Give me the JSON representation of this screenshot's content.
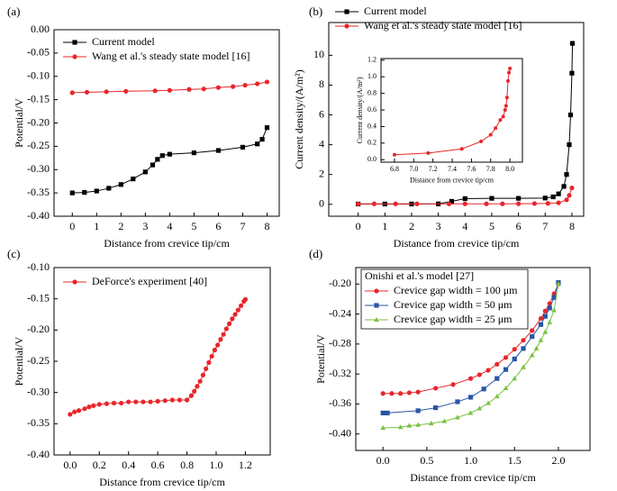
{
  "chart_data": [
    {
      "type": "line",
      "label": "(a)",
      "xlabel": "Distance from crevice tip/cm",
      "ylabel": "Potential/V",
      "xlim": [
        -0.75,
        8.5
      ],
      "xticks": [
        0,
        1,
        2,
        3,
        4,
        5,
        6,
        7,
        8
      ],
      "ylim": [
        -0.4,
        0
      ],
      "yticks": [
        {
          "value": -0.4,
          "label": "-0.40"
        },
        {
          "value": -0.35,
          "label": "-0.35"
        },
        {
          "value": -0.3,
          "label": "-0.30"
        },
        {
          "value": -0.25,
          "label": "-0.25"
        },
        {
          "value": -0.2,
          "label": "-0.20"
        },
        {
          "value": -0.15,
          "label": "-0.15"
        },
        {
          "value": -0.1,
          "label": "-0.10"
        },
        {
          "value": -0.05,
          "label": "-0.05"
        },
        {
          "value": 0,
          "label": "0.00"
        }
      ],
      "legend": "upper left",
      "series": [
        {
          "name": "Current model",
          "color": "#000000",
          "marker": "square",
          "x": [
            0,
            0.5,
            1,
            1.5,
            2,
            2.5,
            3,
            3.3,
            3.5,
            3.7,
            4,
            5,
            6,
            7,
            7.6,
            7.8,
            8
          ],
          "values": [
            -0.35,
            -0.349,
            -0.346,
            -0.34,
            -0.332,
            -0.32,
            -0.305,
            -0.29,
            -0.278,
            -0.27,
            -0.267,
            -0.264,
            -0.259,
            -0.252,
            -0.245,
            -0.235,
            -0.21
          ]
        },
        {
          "name": "Wang et al.'s steady state model [16]",
          "color": "#e8262a",
          "marker": "circle",
          "x": [
            0,
            0.6,
            1.4,
            2.2,
            3.4,
            4,
            4.8,
            5.4,
            6,
            6.6,
            7.1,
            7.6,
            8
          ],
          "values": [
            -0.135,
            -0.134,
            -0.133,
            -0.132,
            -0.131,
            -0.13,
            -0.128,
            -0.127,
            -0.124,
            -0.122,
            -0.119,
            -0.116,
            -0.112
          ]
        }
      ]
    },
    {
      "type": "line",
      "label": "(b)",
      "xlabel": "Distance from crevice tip/cm",
      "ylabel": "Current density/(A/m²)",
      "xlim": [
        -1.1,
        8.44
      ],
      "xticks": [
        0,
        1,
        2,
        3,
        4,
        5,
        6,
        7,
        8
      ],
      "ylim": [
        -0.8,
        12.2
      ],
      "yticks": [
        0,
        2,
        4,
        6,
        8,
        10
      ],
      "legend": "upper left",
      "series": [
        {
          "name": "Current model",
          "color": "#000000",
          "marker": "square",
          "x": [
            0,
            1,
            2,
            3,
            3.5,
            4,
            5,
            6,
            7,
            7.3,
            7.5,
            7.7,
            7.8,
            7.9,
            7.95,
            8,
            8.02
          ],
          "values": [
            0.02,
            0.02,
            0.02,
            0.03,
            0.2,
            0.38,
            0.4,
            0.4,
            0.42,
            0.5,
            0.7,
            1.2,
            2,
            4,
            6,
            8.8,
            10.8
          ]
        },
        {
          "name": "Wang et al.'s steady state model [16]",
          "color": "#e8262a",
          "marker": "circle",
          "x": [
            0,
            0.6,
            1.4,
            2.2,
            3.4,
            4,
            4.8,
            5.4,
            6,
            6.6,
            7.1,
            7.5,
            7.8,
            7.9,
            8
          ],
          "values": [
            0.03,
            0.03,
            0.03,
            0.03,
            0.03,
            0.03,
            0.03,
            0.03,
            0.04,
            0.05,
            0.06,
            0.1,
            0.3,
            0.6,
            1.1
          ]
        }
      ],
      "inset": {
        "type": "line",
        "xlabel": "Distance from crevice tip/cm",
        "ylabel": "Current density/(A/m²)",
        "xlim": [
          6.66,
          8.13
        ],
        "xticks": [
          6.8,
          {
            "value": 7,
            "label": "7.0"
          },
          7.2,
          7.4,
          7.6,
          7.8,
          {
            "value": 8,
            "label": "8.0"
          }
        ],
        "ylim": [
          -0.03,
          1.22
        ],
        "yticks": [
          {
            "value": 0,
            "label": "0.0"
          },
          0.2,
          0.4,
          0.6,
          0.8,
          {
            "value": 1,
            "label": "1.0"
          },
          1.2
        ],
        "series": [
          {
            "color": "#e8262a",
            "marker": "circle",
            "x": [
              6.8,
              7.15,
              7.5,
              7.7,
              7.8,
              7.85,
              7.9,
              7.93,
              7.95,
              7.96,
              7.97,
              7.98,
              7.99,
              8
            ],
            "values": [
              0.06,
              0.08,
              0.13,
              0.22,
              0.3,
              0.38,
              0.48,
              0.52,
              0.6,
              0.65,
              0.75,
              0.95,
              1.05,
              1.1
            ]
          }
        ]
      }
    },
    {
      "type": "line",
      "label": "(c)",
      "xlabel": "Distance from crevice tip/cm",
      "ylabel": "Potential/V",
      "xlim": [
        -0.11,
        1.37
      ],
      "xticks": [
        {
          "value": 0,
          "label": "0.0"
        },
        0.2,
        0.4,
        0.6,
        0.8,
        {
          "value": 1,
          "label": "1.0"
        },
        1.2
      ],
      "ylim": [
        -0.4,
        -0.1
      ],
      "yticks": [
        {
          "value": -0.4,
          "label": "-0.40"
        },
        {
          "value": -0.35,
          "label": "-0.35"
        },
        {
          "value": -0.3,
          "label": "-0.30"
        },
        {
          "value": -0.25,
          "label": "-0.25"
        },
        {
          "value": -0.2,
          "label": "-0.20"
        },
        {
          "value": -0.15,
          "label": "-0.15"
        },
        {
          "value": -0.1,
          "label": "-0.10"
        }
      ],
      "legend": "upper left",
      "series": [
        {
          "name": "DeForce's experiment [40]",
          "color": "#e8262a",
          "marker": "circle",
          "x": [
            0,
            0.03,
            0.06,
            0.1,
            0.13,
            0.16,
            0.2,
            0.25,
            0.3,
            0.35,
            0.4,
            0.45,
            0.5,
            0.55,
            0.6,
            0.65,
            0.7,
            0.75,
            0.8,
            0.83,
            0.85,
            0.87,
            0.89,
            0.91,
            0.93,
            0.95,
            0.97,
            0.99,
            1.01,
            1.03,
            1.05,
            1.07,
            1.09,
            1.11,
            1.13,
            1.15,
            1.17,
            1.19,
            1.2
          ],
          "values": [
            -0.335,
            -0.331,
            -0.329,
            -0.326,
            -0.323,
            -0.321,
            -0.319,
            -0.318,
            -0.317,
            -0.317,
            -0.315,
            -0.315,
            -0.315,
            -0.315,
            -0.314,
            -0.313,
            -0.312,
            -0.312,
            -0.312,
            -0.305,
            -0.298,
            -0.29,
            -0.282,
            -0.272,
            -0.262,
            -0.252,
            -0.242,
            -0.232,
            -0.224,
            -0.215,
            -0.207,
            -0.198,
            -0.19,
            -0.182,
            -0.175,
            -0.168,
            -0.161,
            -0.154,
            -0.151
          ]
        }
      ]
    },
    {
      "type": "line",
      "label": "(d)",
      "xlabel": "Distance from crevice tip/cm",
      "ylabel": "Potential/V",
      "xlim": [
        -0.31,
        2.36
      ],
      "xticks": [
        {
          "value": 0,
          "label": "0.0"
        },
        0.5,
        {
          "value": 1,
          "label": "1.0"
        },
        1.5,
        {
          "value": 2,
          "label": "2.0"
        }
      ],
      "ylim": [
        -0.422,
        -0.178
      ],
      "yticks": [
        {
          "value": -0.4,
          "label": "-0.40"
        },
        -0.36,
        -0.32,
        -0.28,
        -0.24,
        {
          "value": -0.2,
          "label": "-0.20"
        }
      ],
      "legend": "upper left",
      "legend_title": "Onishi et al.'s model [27]",
      "series": [
        {
          "name": "Crevice gap width = 100 μm",
          "color": "#e8262a",
          "marker": "circle",
          "x": [
            0,
            0.1,
            0.2,
            0.3,
            0.4,
            0.6,
            0.8,
            1,
            1.1,
            1.2,
            1.3,
            1.4,
            1.5,
            1.6,
            1.7,
            1.8,
            1.85,
            1.9,
            1.95,
            2
          ],
          "values": [
            -0.346,
            -0.346,
            -0.346,
            -0.345,
            -0.344,
            -0.339,
            -0.334,
            -0.326,
            -0.321,
            -0.315,
            -0.307,
            -0.298,
            -0.287,
            -0.275,
            -0.262,
            -0.246,
            -0.236,
            -0.226,
            -0.213,
            -0.2
          ]
        },
        {
          "name": "Crevice gap width = 50 μm",
          "color": "#2a55a5",
          "marker": "square",
          "x": [
            0,
            0.05,
            0.4,
            0.6,
            0.85,
            1,
            1.15,
            1.3,
            1.4,
            1.5,
            1.6,
            1.7,
            1.8,
            1.85,
            1.9,
            1.95,
            2
          ],
          "values": [
            -0.372,
            -0.372,
            -0.369,
            -0.365,
            -0.357,
            -0.351,
            -0.34,
            -0.326,
            -0.314,
            -0.3,
            -0.286,
            -0.27,
            -0.254,
            -0.243,
            -0.232,
            -0.218,
            -0.198
          ]
        },
        {
          "name": "Crevice gap width = 25 μm",
          "color": "#7cc142",
          "marker": "triangle",
          "x": [
            0,
            0.2,
            0.3,
            0.4,
            0.55,
            0.7,
            0.85,
            1,
            1.1,
            1.2,
            1.3,
            1.4,
            1.5,
            1.6,
            1.7,
            1.75,
            1.8,
            1.85,
            1.9,
            1.95,
            2
          ],
          "values": [
            -0.392,
            -0.391,
            -0.389,
            -0.388,
            -0.386,
            -0.383,
            -0.378,
            -0.372,
            -0.366,
            -0.359,
            -0.35,
            -0.339,
            -0.326,
            -0.311,
            -0.295,
            -0.286,
            -0.275,
            -0.264,
            -0.251,
            -0.235,
            -0.2
          ]
        }
      ]
    }
  ]
}
